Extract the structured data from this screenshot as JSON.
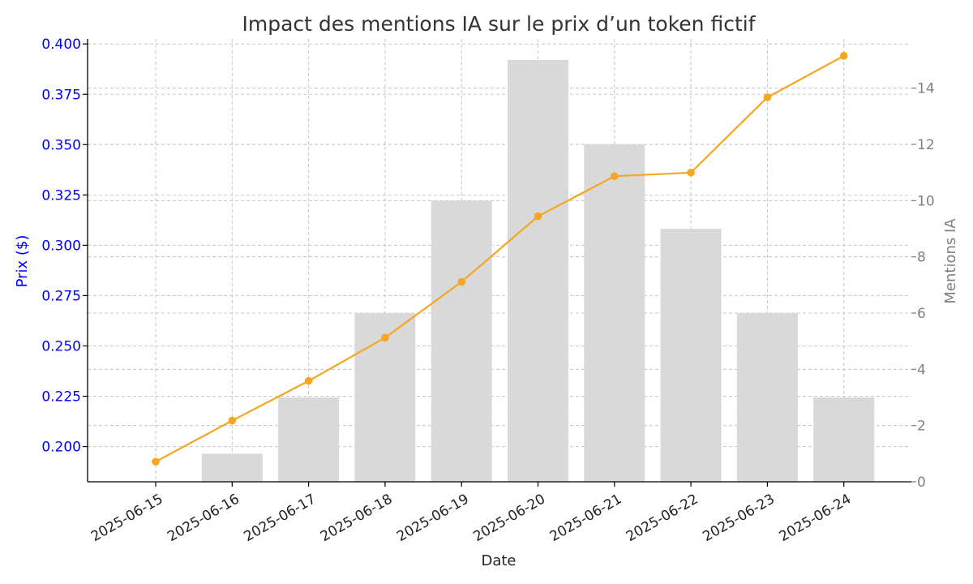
{
  "chart_data": {
    "type": "bar",
    "title": "Impact des mentions IA sur le prix d’un token fictif",
    "xlabel": "Date",
    "categories": [
      "2025-06-15",
      "2025-06-16",
      "2025-06-17",
      "2025-06-18",
      "2025-06-19",
      "2025-06-20",
      "2025-06-21",
      "2025-06-22",
      "2025-06-23",
      "2025-06-24"
    ],
    "series": [
      {
        "name": "Prix ($)",
        "type": "line",
        "axis": "left",
        "color": "#f5a623",
        "values": [
          0.1925,
          0.2129,
          0.2326,
          0.2541,
          0.2818,
          0.3144,
          0.3343,
          0.3361,
          0.3735,
          0.3941
        ]
      },
      {
        "name": "Mentions IA",
        "type": "bar",
        "axis": "right",
        "color": "#d9d9d9",
        "values": [
          0,
          1,
          3,
          6,
          10,
          15,
          12,
          9,
          6,
          3
        ]
      }
    ],
    "y_left": {
      "label": "Prix ($)",
      "color": "#0000ff",
      "range": [
        0.1825,
        0.4025
      ],
      "ticks": [
        "0.200",
        "0.225",
        "0.250",
        "0.275",
        "0.300",
        "0.325",
        "0.350",
        "0.375",
        "0.400"
      ]
    },
    "y_right": {
      "label": "Mentions IA",
      "color": "#808080",
      "range": [
        0,
        15.75
      ],
      "ticks": [
        "0",
        "2",
        "4",
        "6",
        "8",
        "10",
        "12",
        "14"
      ]
    },
    "grid": true,
    "legend": "none"
  }
}
